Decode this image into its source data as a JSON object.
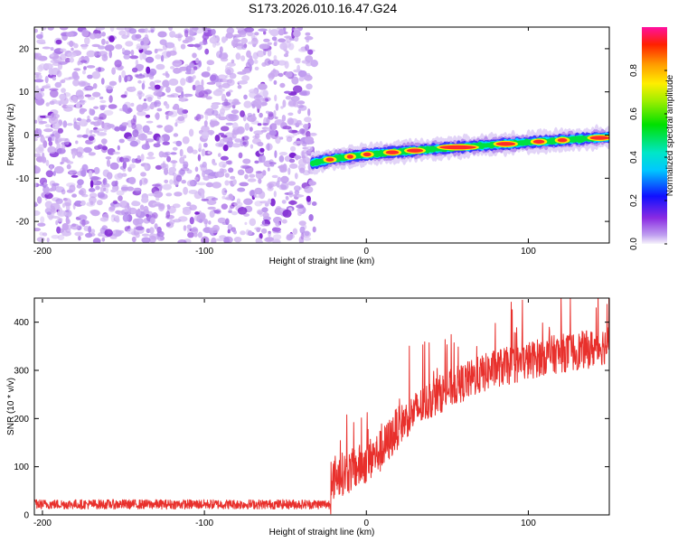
{
  "title": "S173.2026.010.16.47.G24",
  "colors": {
    "line": "#e8302c",
    "noise_dark": "#7a1fd0",
    "noise_light": "#c9a8f0",
    "axes": "#000000"
  },
  "chart_data": [
    {
      "type": "heatmap",
      "xlabel": "Height of straight line (km)",
      "ylabel": "Frequency (Hz)",
      "xlim": [
        -205,
        150
      ],
      "ylim": [
        -25,
        25
      ],
      "xticks": [
        -200,
        -100,
        0,
        100
      ],
      "yticks": [
        -20,
        -10,
        0,
        10,
        20
      ],
      "colormap": "rainbow (magenta-blue-cyan-green-yellow-red)",
      "noise_region_x": [
        -205,
        -32
      ],
      "signal_track": {
        "x": [
          -33,
          -20,
          0,
          50,
          100,
          150
        ],
        "frequency": [
          -6.5,
          -5.5,
          -4.5,
          -3,
          -1.7,
          -0.5
        ]
      },
      "colorbar": {
        "label": "Normalized spectral amplitude",
        "range": [
          0,
          1
        ],
        "ticks": [
          "0.0",
          "0.2",
          "0.4",
          "0.6",
          "0.8"
        ]
      }
    },
    {
      "type": "line",
      "xlabel": "Height of straight line (km)",
      "ylabel": "SNR (10 * v/v)",
      "xlim": [
        -205,
        150
      ],
      "ylim": [
        0,
        450
      ],
      "xticks": [
        -200,
        -100,
        0,
        100
      ],
      "yticks": [
        0,
        100,
        200,
        300,
        400
      ],
      "series": [
        {
          "x": [
            -205,
            -150,
            -100,
            -50,
            -22,
            -20,
            -10,
            0,
            10,
            20,
            30,
            40,
            50,
            60,
            70,
            80,
            90,
            100,
            110,
            120,
            130,
            140,
            150
          ],
          "y": [
            22,
            22,
            22,
            22,
            22,
            80,
            90,
            110,
            135,
            185,
            215,
            240,
            260,
            275,
            290,
            305,
            310,
            320,
            330,
            335,
            340,
            345,
            355
          ]
        }
      ]
    }
  ]
}
